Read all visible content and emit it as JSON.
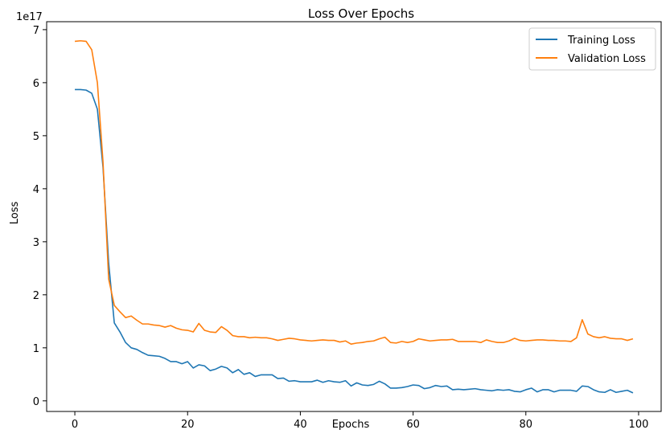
{
  "chart_data": {
    "type": "line",
    "title": "Loss Over Epochs",
    "xlabel": "Epochs",
    "ylabel": "Loss",
    "y_offset_label": "1e17",
    "y_scale_factor": 1e+17,
    "xlim": [
      -5,
      104
    ],
    "ylim": [
      -2e+16,
      7.15e+17
    ],
    "x_ticks": [
      0,
      20,
      40,
      60,
      80,
      100
    ],
    "x_tick_labels": [
      "0",
      "20",
      "40",
      "60",
      "80",
      "100"
    ],
    "y_ticks": [
      0,
      1e+17,
      2e+17,
      3e+17,
      4e+17,
      5e+17,
      6e+17,
      7e+17
    ],
    "y_tick_labels": [
      "0",
      "1",
      "2",
      "3",
      "4",
      "5",
      "6",
      "7"
    ],
    "grid": false,
    "legend_position": "top-right",
    "series": [
      {
        "name": "Training Loss",
        "color": "#1f77b4",
        "values": [
          5.87e+17,
          5.87e+17,
          5.86e+17,
          5.8e+17,
          5.5e+17,
          4.4e+17,
          2.6e+17,
          1.47e+17,
          1.3e+17,
          1.1e+17,
          1e+17,
          9.7e+16,
          9.1e+16,
          8.6e+16,
          8.5e+16,
          8.4e+16,
          8e+16,
          7.4e+16,
          7.4e+16,
          7e+16,
          7.4e+16,
          6.2e+16,
          6.8e+16,
          6.6e+16,
          5.7e+16,
          6e+16,
          6.5e+16,
          6.2e+16,
          5.3e+16,
          5.9e+16,
          5e+16,
          5.3e+16,
          4.6e+16,
          4.9e+16,
          4.9e+16,
          4.9e+16,
          4.2e+16,
          4.3e+16,
          3.7e+16,
          3.8e+16,
          3.6e+16,
          3.6e+16,
          3.6e+16,
          3.9e+16,
          3.5e+16,
          3.8e+16,
          3.6e+16,
          3.5e+16,
          3.8e+16,
          2.8e+16,
          3.4e+16,
          3e+16,
          2.9e+16,
          3.1e+16,
          3.7e+16,
          3.2e+16,
          2.4e+16,
          2.4e+16,
          2.5e+16,
          2.7e+16,
          3e+16,
          2.9e+16,
          2.3e+16,
          2.5e+16,
          2.9e+16,
          2.7e+16,
          2.8e+16,
          2.1e+16,
          2.2e+16,
          2.1e+16,
          2.2e+16,
          2.3e+16,
          2.1e+16,
          2e+16,
          1.9e+16,
          2.1e+16,
          2e+16,
          2.1e+16,
          1.8e+16,
          1.7e+16,
          2.1e+16,
          2.4e+16,
          1.7e+16,
          2.1e+16,
          2.1e+16,
          1.7e+16,
          2e+16,
          2e+16,
          2e+16,
          1.8e+16,
          2.8e+16,
          2.7e+16,
          2.1e+16,
          1.7e+16,
          1.6e+16,
          2.1e+16,
          1.6e+16,
          1.8e+16,
          2e+16,
          1.5e+16
        ]
      },
      {
        "name": "Validation Loss",
        "color": "#ff7f0e",
        "values": [
          6.78e+17,
          6.79e+17,
          6.78e+17,
          6.62e+17,
          6e+17,
          4.5e+17,
          2.3e+17,
          1.8e+17,
          1.68e+17,
          1.57e+17,
          1.6e+17,
          1.52e+17,
          1.45e+17,
          1.45e+17,
          1.43e+17,
          1.42e+17,
          1.39e+17,
          1.42e+17,
          1.37e+17,
          1.34e+17,
          1.33e+17,
          1.3e+17,
          1.46e+17,
          1.33e+17,
          1.3e+17,
          1.29e+17,
          1.4e+17,
          1.33e+17,
          1.23e+17,
          1.21e+17,
          1.21e+17,
          1.19e+17,
          1.2e+17,
          1.19e+17,
          1.19e+17,
          1.17e+17,
          1.14e+17,
          1.16e+17,
          1.18e+17,
          1.17e+17,
          1.15e+17,
          1.14e+17,
          1.13e+17,
          1.14e+17,
          1.15e+17,
          1.14e+17,
          1.14e+17,
          1.11e+17,
          1.13e+17,
          1.07e+17,
          1.09e+17,
          1.1e+17,
          1.12e+17,
          1.13e+17,
          1.17e+17,
          1.2e+17,
          1.1e+17,
          1.09e+17,
          1.12e+17,
          1.1e+17,
          1.12e+17,
          1.17e+17,
          1.15e+17,
          1.13e+17,
          1.14e+17,
          1.15e+17,
          1.15e+17,
          1.16e+17,
          1.12e+17,
          1.12e+17,
          1.12e+17,
          1.12e+17,
          1.1e+17,
          1.15e+17,
          1.12e+17,
          1.1e+17,
          1.1e+17,
          1.13e+17,
          1.18e+17,
          1.14e+17,
          1.13e+17,
          1.14e+17,
          1.15e+17,
          1.15e+17,
          1.14e+17,
          1.14e+17,
          1.13e+17,
          1.13e+17,
          1.12e+17,
          1.19e+17,
          1.53e+17,
          1.26e+17,
          1.21e+17,
          1.19e+17,
          1.21e+17,
          1.18e+17,
          1.17e+17,
          1.17e+17,
          1.14e+17,
          1.17e+17
        ]
      }
    ]
  }
}
